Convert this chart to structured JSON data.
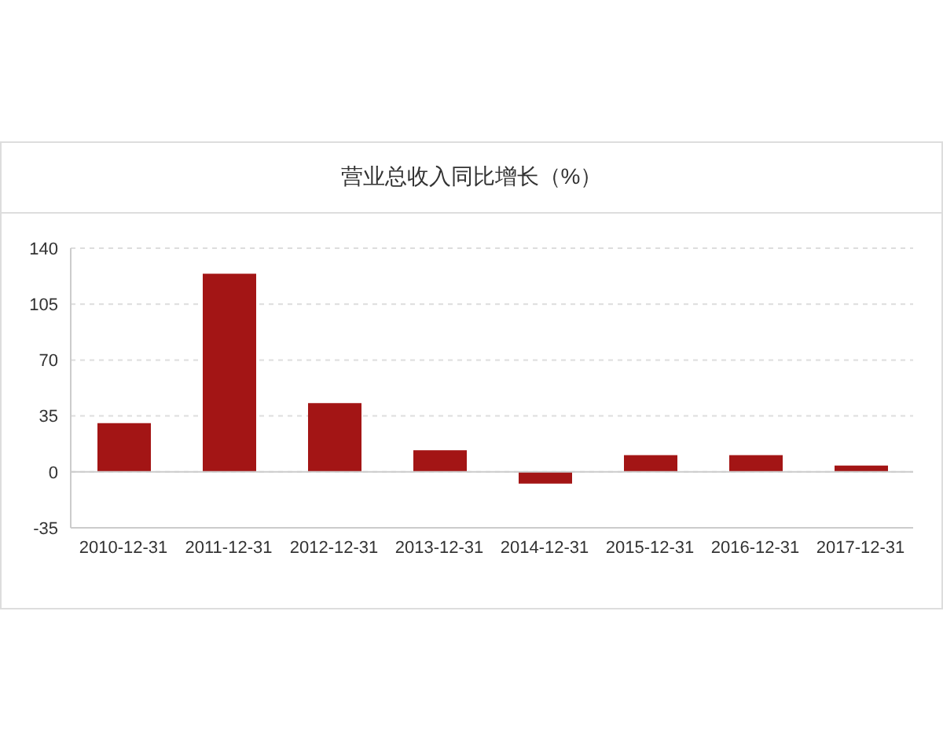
{
  "chart_data": {
    "type": "bar",
    "title": "营业总收入同比增长（%）",
    "categories": [
      "2010-12-31",
      "2011-12-31",
      "2012-12-31",
      "2013-12-31",
      "2014-12-31",
      "2015-12-31",
      "2016-12-31",
      "2017-12-31"
    ],
    "values": [
      30.5,
      124,
      43,
      13.6,
      -7.3,
      10.5,
      10.5,
      4
    ],
    "color": "#a31515",
    "ylim": [
      -35,
      140
    ],
    "yticks": [
      -35,
      0,
      35,
      70,
      105,
      140
    ],
    "grid": "y"
  }
}
